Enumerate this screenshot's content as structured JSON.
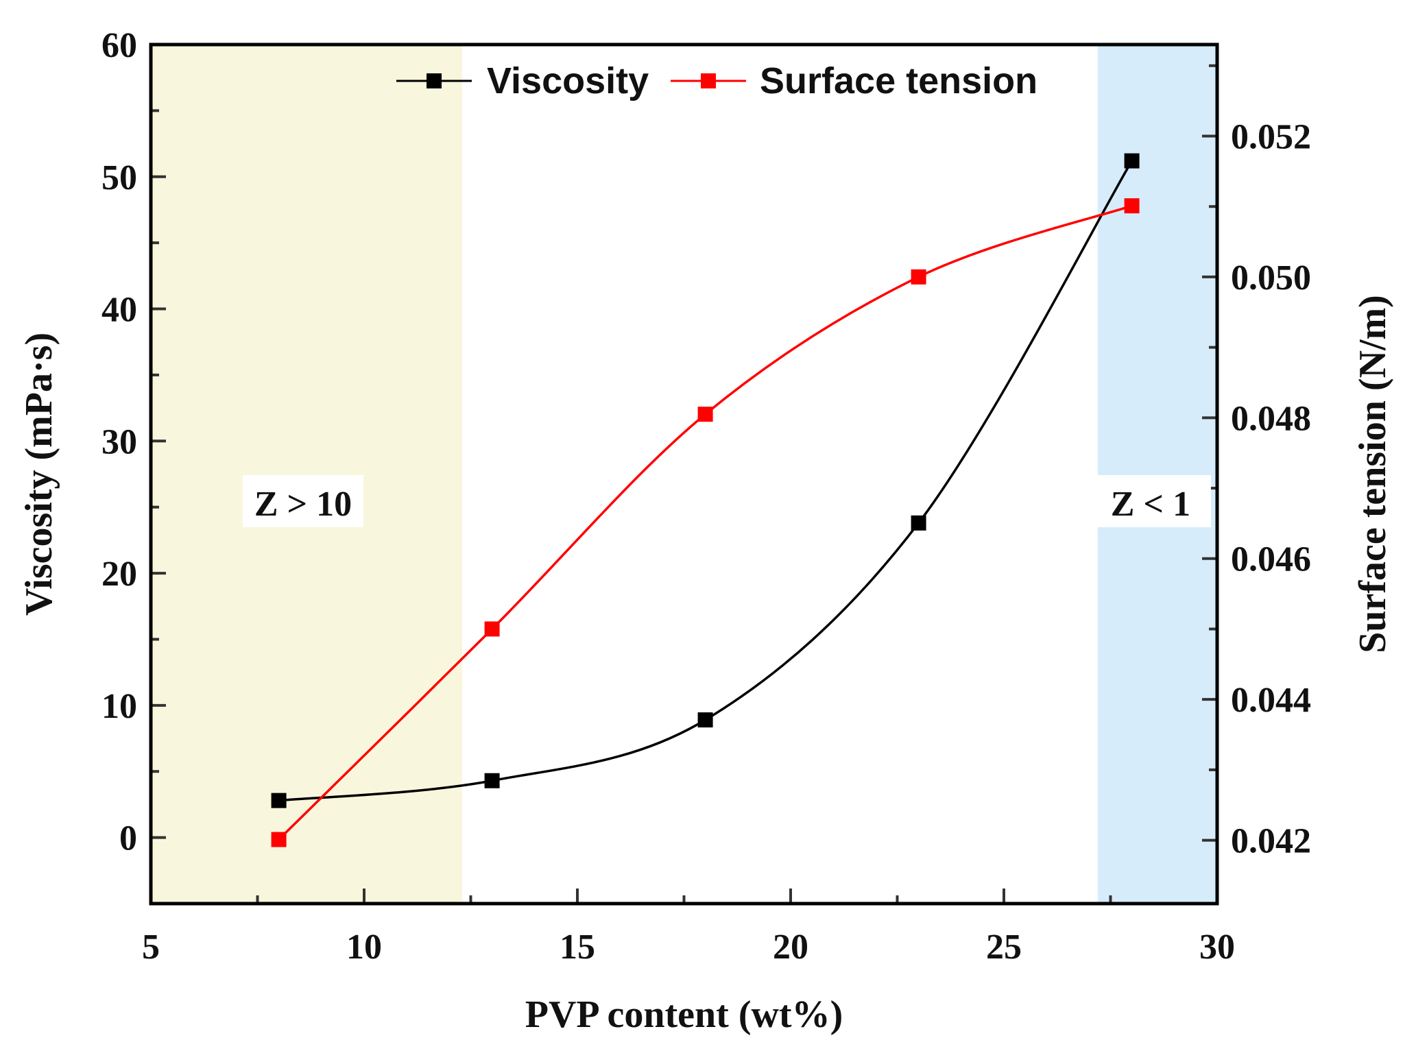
{
  "chart_data": {
    "type": "line",
    "x_label": "PVP content (wt%)",
    "y_left_label": "Viscosity (mPa·s)",
    "y_right_label": "Surface tension (N/m)",
    "x_range": [
      5,
      30
    ],
    "x_ticks": [
      5,
      10,
      15,
      20,
      25,
      30
    ],
    "y_left_range": [
      -5,
      60
    ],
    "y_left_ticks": [
      0,
      10,
      20,
      30,
      40,
      50,
      60
    ],
    "y_right_range": [
      0.0411,
      0.0533
    ],
    "y_right_ticks": [
      0.042,
      0.044,
      0.046,
      0.048,
      0.05,
      0.052
    ],
    "series": [
      {
        "name": "Viscosity",
        "axis": "left",
        "color": "#000000",
        "marker": "square",
        "x": [
          8,
          13,
          18,
          23,
          28
        ],
        "y": [
          2.8,
          4.3,
          8.9,
          23.8,
          51.2
        ]
      },
      {
        "name": "Surface tension",
        "axis": "right",
        "color": "#ff0000",
        "marker": "square",
        "x": [
          8,
          13,
          18,
          23,
          28
        ],
        "y": [
          0.04201,
          0.045,
          0.04805,
          0.05,
          0.05101
        ]
      }
    ],
    "regions": [
      {
        "label": "Z > 10",
        "x_from": 5,
        "x_to": 12.3,
        "color": "#f8f6dc"
      },
      {
        "label": "Z < 1",
        "x_from": 27.2,
        "x_to": 30,
        "color": "#d6ecfa"
      }
    ],
    "legend_position": "top-center"
  }
}
